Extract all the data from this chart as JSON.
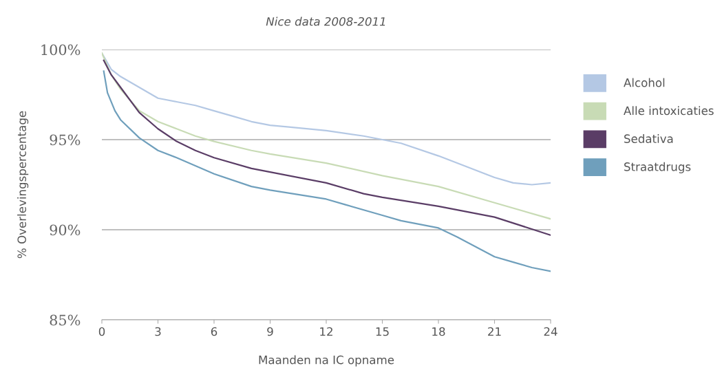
{
  "chart_data": {
    "type": "line",
    "title": "Nice data 2008-2011",
    "xlabel": "Maanden na IC opname",
    "ylabel": "% Overlevingspercentage",
    "xlim": [
      0,
      24
    ],
    "xticks": [
      0,
      3,
      6,
      9,
      12,
      15,
      18,
      21,
      24
    ],
    "ylim": [
      85,
      100
    ],
    "yticks": [
      {
        "value": 85,
        "label": "85%"
      },
      {
        "value": 90,
        "label": "90%"
      },
      {
        "value": 95,
        "label": "95%"
      },
      {
        "value": 100,
        "label": "100%"
      }
    ],
    "grid": "y",
    "legend": "right",
    "marker": "none",
    "line_style": "solid",
    "series": [
      {
        "name": "Alcohol",
        "color": "#b4c8e4",
        "x": [
          0,
          0.5,
          1,
          2,
          3,
          4,
          5,
          6,
          7,
          8,
          9,
          10,
          12,
          14,
          15,
          16,
          18,
          20,
          21,
          22,
          23,
          24
        ],
        "values": [
          99.8,
          98.9,
          98.5,
          97.9,
          97.3,
          97.1,
          96.9,
          96.6,
          96.3,
          96.0,
          95.8,
          95.7,
          95.5,
          95.2,
          95.0,
          94.8,
          94.1,
          93.3,
          92.9,
          92.6,
          92.5,
          92.6
        ]
      },
      {
        "name": "Alle intoxicaties",
        "color": "#c8dbb5",
        "x": [
          0,
          0.5,
          1,
          2,
          3,
          4,
          5,
          6,
          8,
          9,
          12,
          15,
          18,
          21,
          24
        ],
        "values": [
          99.8,
          98.6,
          97.8,
          96.6,
          96.0,
          95.6,
          95.2,
          94.9,
          94.4,
          94.2,
          93.7,
          93.0,
          92.4,
          91.5,
          90.6
        ]
      },
      {
        "name": "Sedativa",
        "color": "#5a3d66",
        "x": [
          0.1,
          0.5,
          1,
          2,
          3,
          4,
          5,
          6,
          8,
          9,
          12,
          14,
          15,
          18,
          21,
          24
        ],
        "values": [
          99.4,
          98.6,
          97.9,
          96.5,
          95.6,
          94.9,
          94.4,
          94.0,
          93.4,
          93.2,
          92.6,
          92.0,
          91.8,
          91.3,
          90.7,
          89.7
        ]
      },
      {
        "name": "Straatdrugs",
        "color": "#6f9fbc",
        "x": [
          0.1,
          0.3,
          0.7,
          1,
          2,
          3,
          4,
          6,
          8,
          9,
          12,
          13,
          15,
          16,
          18,
          19,
          21,
          22,
          23,
          24
        ],
        "values": [
          98.8,
          97.6,
          96.6,
          96.1,
          95.1,
          94.4,
          94.0,
          93.1,
          92.4,
          92.2,
          91.7,
          91.4,
          90.8,
          90.5,
          90.1,
          89.6,
          88.5,
          88.2,
          87.9,
          87.7
        ]
      }
    ]
  }
}
